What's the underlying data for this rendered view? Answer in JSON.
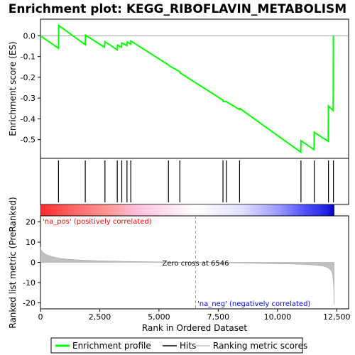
{
  "chart_data": {
    "type": "line",
    "title": "Enrichment plot: KEGG_RIBOFLAVIN_METABOLISM",
    "xlabel": "Rank in Ordered Dataset",
    "ylabel_top": "Enrichment score (ES)",
    "ylabel_bottom": "Ranked list metric (PreRanked)",
    "xlim": [
      0,
      13000
    ],
    "es_ylim": [
      -0.59,
      0.08
    ],
    "metric_ylim": [
      -23,
      23
    ],
    "x_ticks": [
      {
        "value": 0,
        "label": "0"
      },
      {
        "value": 2500,
        "label": "2,500"
      },
      {
        "value": 5000,
        "label": "5,000"
      },
      {
        "value": 7500,
        "label": "7,500"
      },
      {
        "value": 10000,
        "label": "10,000"
      },
      {
        "value": 12500,
        "label": "12,500"
      }
    ],
    "es_ticks": [
      {
        "value": 0.0,
        "label": "0.0"
      },
      {
        "value": -0.1,
        "label": "-0.1"
      },
      {
        "value": -0.2,
        "label": "-0.2"
      },
      {
        "value": -0.3,
        "label": "-0.3"
      },
      {
        "value": -0.4,
        "label": "-0.4"
      },
      {
        "value": -0.5,
        "label": "-0.5"
      }
    ],
    "metric_ticks": [
      {
        "value": 20,
        "label": "20"
      },
      {
        "value": 10,
        "label": "10"
      },
      {
        "value": 0,
        "label": "0"
      },
      {
        "value": -10,
        "label": "-10"
      },
      {
        "value": -20,
        "label": "-20"
      }
    ],
    "enrichment_profile": [
      [
        0,
        0.0
      ],
      [
        760,
        -0.06
      ],
      [
        770,
        0.05
      ],
      [
        1890,
        -0.043
      ],
      [
        1900,
        0.003
      ],
      [
        2700,
        -0.055
      ],
      [
        2720,
        -0.028
      ],
      [
        3240,
        -0.068
      ],
      [
        3250,
        -0.045
      ],
      [
        3420,
        -0.055
      ],
      [
        3430,
        -0.035
      ],
      [
        3650,
        -0.047
      ],
      [
        3660,
        -0.03
      ],
      [
        3800,
        -0.04
      ],
      [
        3810,
        -0.025
      ],
      [
        5400,
        -0.14
      ],
      [
        5410,
        -0.143
      ],
      [
        5880,
        -0.173
      ],
      [
        5890,
        -0.178
      ],
      [
        7700,
        -0.31
      ],
      [
        7710,
        -0.316
      ],
      [
        7850,
        -0.318
      ],
      [
        8400,
        -0.355
      ],
      [
        8410,
        -0.35
      ],
      [
        10980,
        -0.56
      ],
      [
        10990,
        -0.505
      ],
      [
        11540,
        -0.548
      ],
      [
        11550,
        -0.465
      ],
      [
        12140,
        -0.508
      ],
      [
        12150,
        -0.338
      ],
      [
        12350,
        -0.36
      ],
      [
        12360,
        0.0
      ]
    ],
    "hits": [
      760,
      1890,
      2720,
      3240,
      3430,
      3650,
      3810,
      5400,
      5880,
      7700,
      7850,
      8400,
      10990,
      11550,
      12150,
      12360
    ],
    "metric_scores": [
      [
        0,
        7.5
      ],
      [
        40,
        6.0
      ],
      [
        100,
        5.0
      ],
      [
        250,
        3.8
      ],
      [
        500,
        2.8
      ],
      [
        800,
        2.0
      ],
      [
        1200,
        1.5
      ],
      [
        1800,
        1.1
      ],
      [
        2500,
        0.8
      ],
      [
        3500,
        0.5
      ],
      [
        4500,
        0.3
      ],
      [
        5500,
        0.15
      ],
      [
        6546,
        0.0
      ],
      [
        7500,
        -0.2
      ],
      [
        8500,
        -0.4
      ],
      [
        9500,
        -0.6
      ],
      [
        10500,
        -0.8
      ],
      [
        11000,
        -1.0
      ],
      [
        11500,
        -1.3
      ],
      [
        11900,
        -1.8
      ],
      [
        12100,
        -2.5
      ],
      [
        12250,
        -3.8
      ],
      [
        12330,
        -6.0
      ],
      [
        12370,
        -12.0
      ],
      [
        12390,
        -21.0
      ]
    ],
    "zero_cross_rank": 6546,
    "zero_cross_label": "Zero cross at 6546",
    "pos_label": "'na_pos' (positively correlated)",
    "neg_label": "'na_neg' (negatively correlated)",
    "legend": [
      "Enrichment profile",
      "Hits",
      "Ranking metric scores"
    ],
    "colors": {
      "profile": "#00ff00",
      "hits": "#000000",
      "metric": "#c0c0c0",
      "pos": "#ff0000",
      "neg": "#0000ff"
    },
    "heat_stops": [
      {
        "rank": 0,
        "color": "#ff2a2a"
      },
      {
        "rank": 1500,
        "color": "#ff6a6a"
      },
      {
        "rank": 3000,
        "color": "#ff9c9c"
      },
      {
        "rank": 4100,
        "color": "#ffc0e0"
      },
      {
        "rank": 6546,
        "color": "#ffffff"
      },
      {
        "rank": 8500,
        "color": "#e0e0ff"
      },
      {
        "rank": 10000,
        "color": "#9c9cff"
      },
      {
        "rank": 11000,
        "color": "#5a5aff"
      },
      {
        "rank": 12100,
        "color": "#2020e0"
      },
      {
        "rank": 12390,
        "color": "#0000c0"
      }
    ]
  }
}
